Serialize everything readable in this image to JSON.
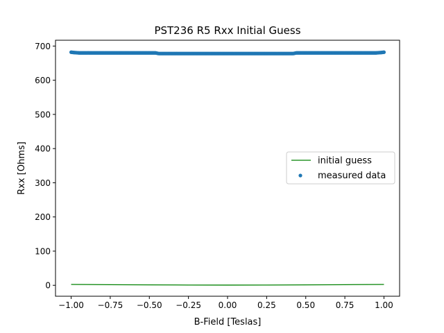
{
  "chart_data": {
    "type": "scatter",
    "title": "PST236 R5 Rxx Initial Guess",
    "xlabel": "B-Field [Teslas]",
    "ylabel": "Rxx [Ohms]",
    "xlim": [
      -1.1,
      1.1
    ],
    "ylim": [
      -32,
      717
    ],
    "xticks": [
      -1.0,
      -0.75,
      -0.5,
      -0.25,
      0.0,
      0.25,
      0.5,
      0.75,
      1.0
    ],
    "xtick_labels": [
      "−1.00",
      "−0.75",
      "−0.50",
      "−0.25",
      "0.00",
      "0.25",
      "0.50",
      "0.75",
      "1.00"
    ],
    "yticks": [
      0,
      100,
      200,
      300,
      400,
      500,
      600,
      700
    ],
    "ytick_labels": [
      "0",
      "100",
      "200",
      "300",
      "400",
      "500",
      "600",
      "700"
    ],
    "grid": false,
    "legend": {
      "placement": "center-right"
    },
    "series": [
      {
        "name": "initial guess",
        "kind": "line",
        "color": "#008000",
        "x": [
          -1.0,
          -0.75,
          -0.5,
          -0.25,
          0.0,
          0.25,
          0.5,
          0.75,
          1.0
        ],
        "y": [
          2.5,
          1.8,
          1.2,
          0.8,
          0.6,
          0.8,
          1.2,
          1.8,
          2.5
        ]
      },
      {
        "name": "measured data",
        "kind": "scatter",
        "color": "#1f77b4",
        "x": [
          -1.0,
          -0.98,
          -0.95,
          -0.9,
          -0.8,
          -0.7,
          -0.6,
          -0.5,
          -0.46,
          -0.44,
          -0.35,
          -0.25,
          -0.1,
          0.0,
          0.1,
          0.25,
          0.35,
          0.42,
          0.44,
          0.5,
          0.6,
          0.7,
          0.8,
          0.9,
          0.95,
          0.98,
          1.0
        ],
        "y": [
          682,
          681,
          680,
          680,
          680,
          680,
          680,
          680,
          680,
          678,
          678,
          678,
          678,
          678,
          678,
          678,
          678,
          678,
          680,
          680,
          680,
          680,
          680,
          680,
          680,
          681,
          682
        ]
      }
    ]
  }
}
